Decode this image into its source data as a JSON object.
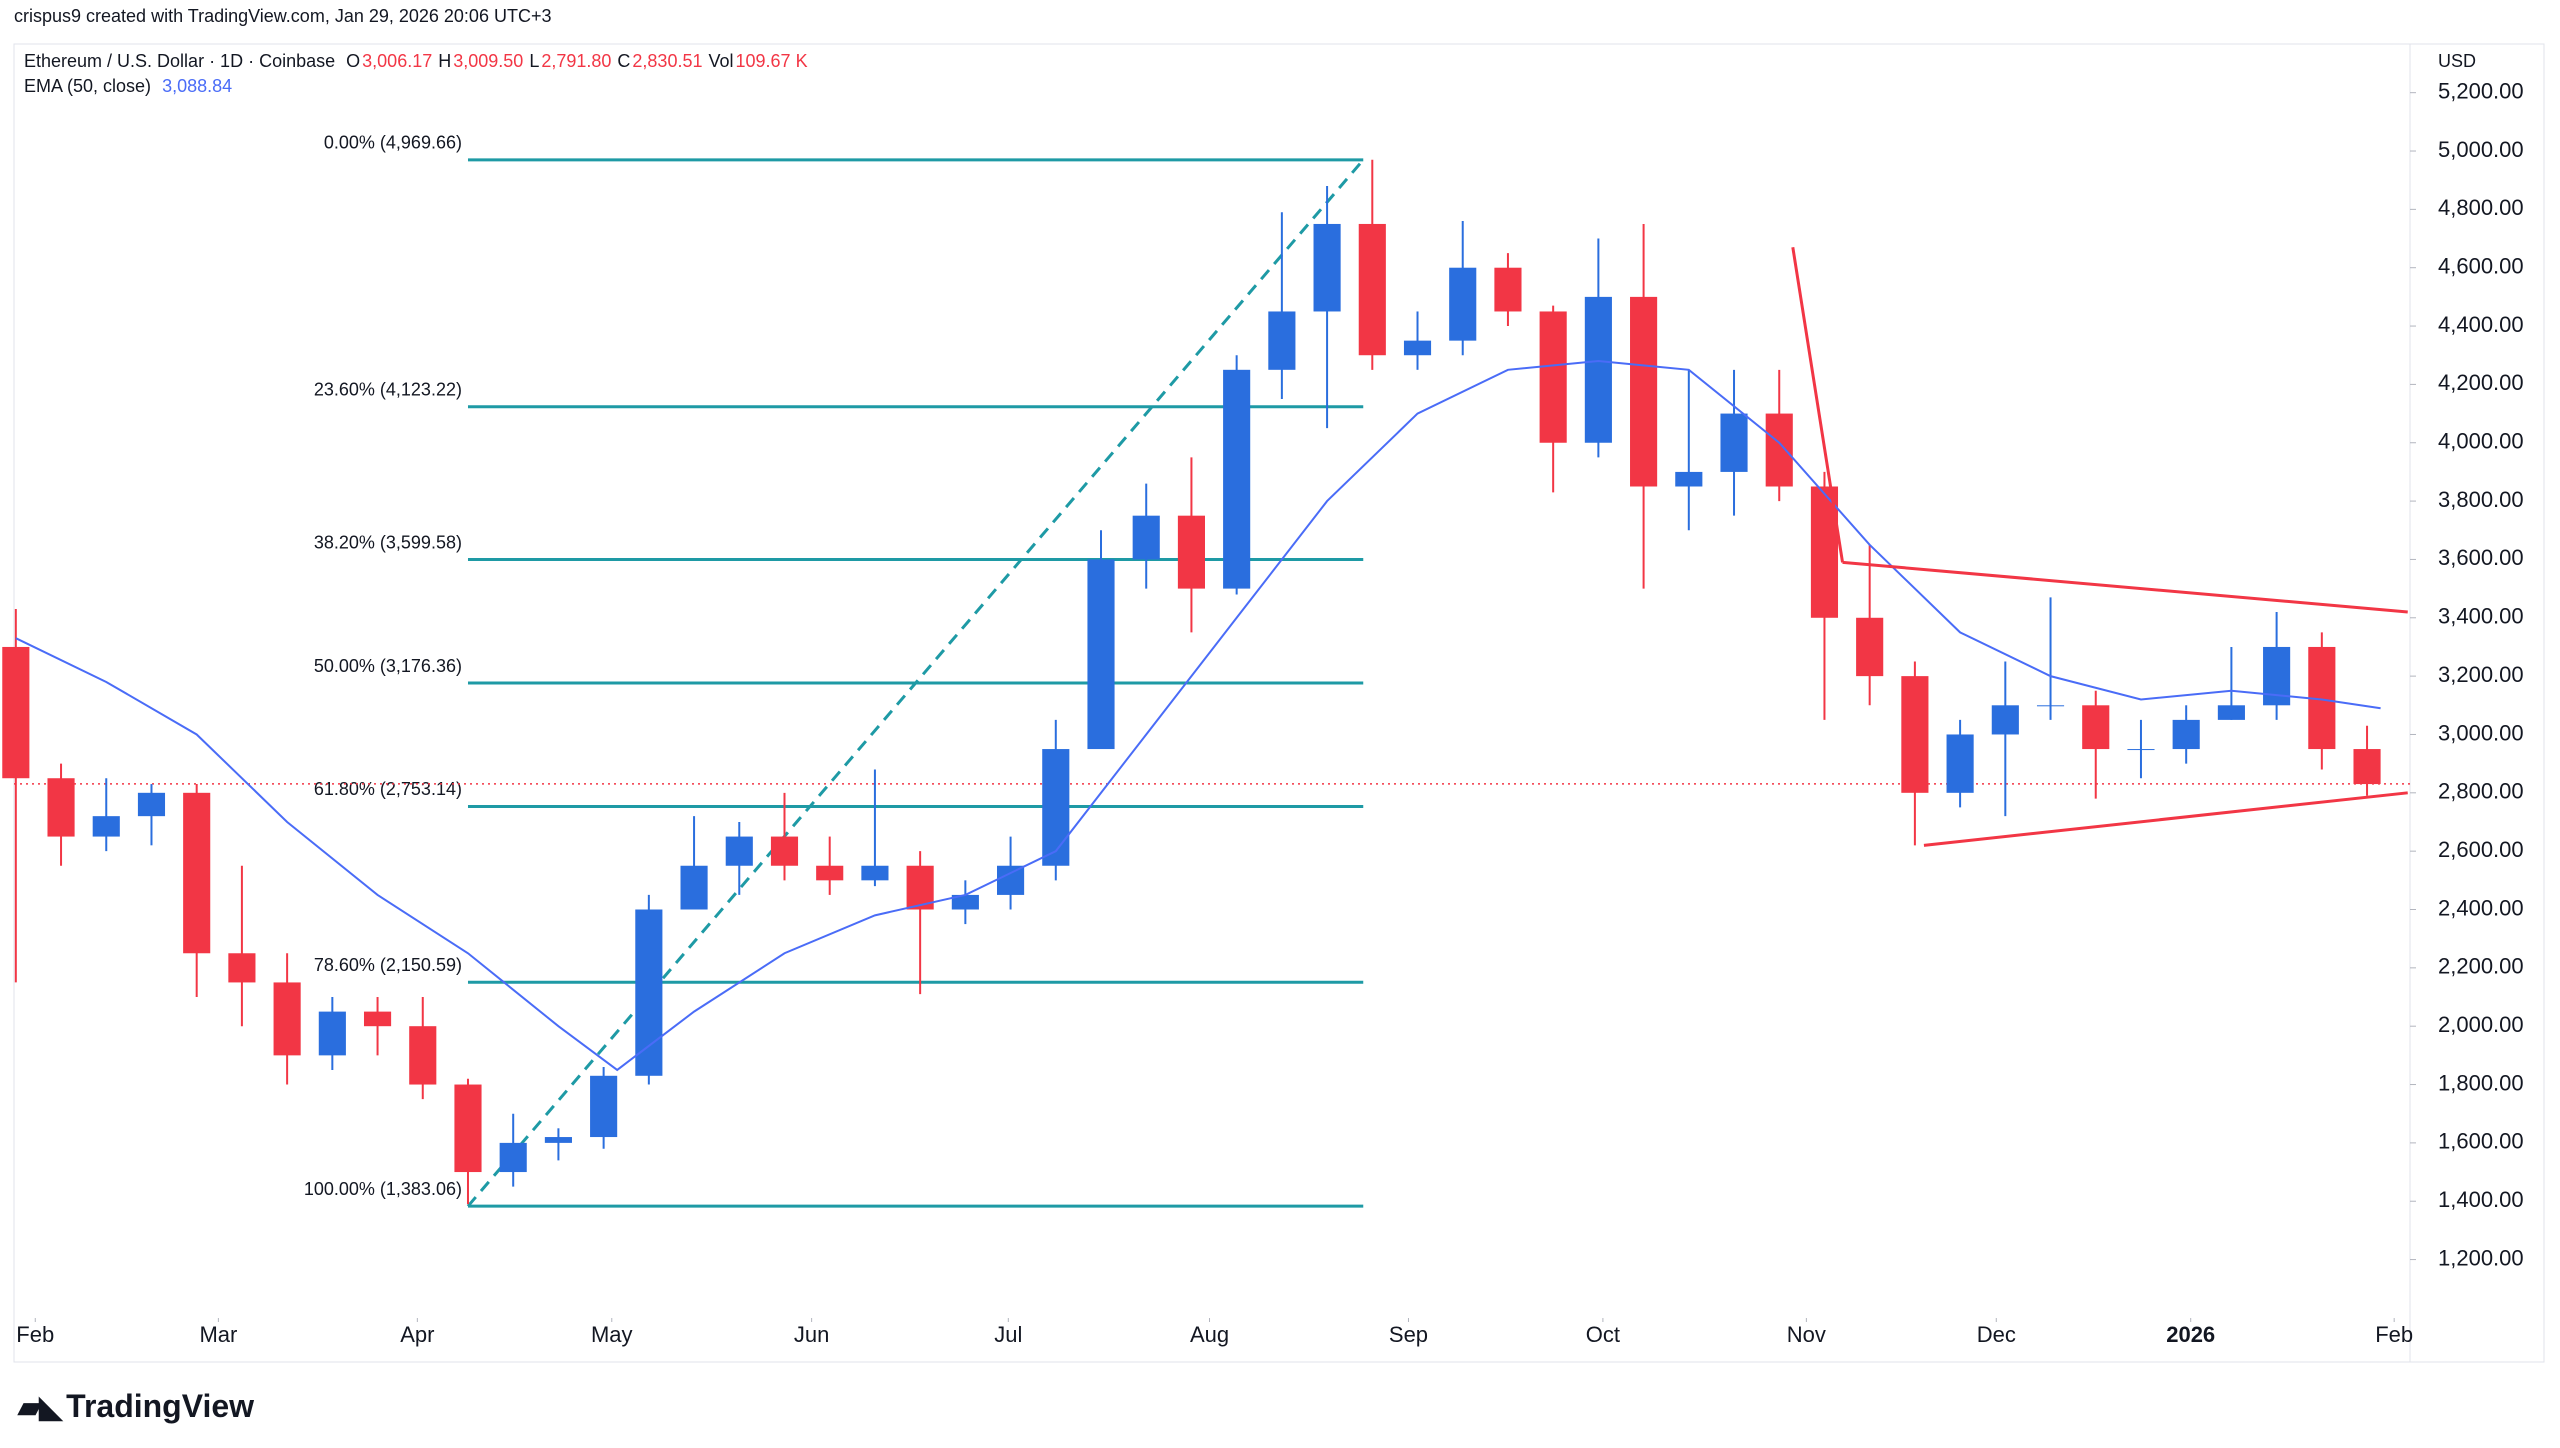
{
  "header": {
    "attribution": "crispus9 created with TradingView.com, Jan 29, 2026 20:06 UTC+3",
    "symbol": "Ethereum / U.S. Dollar · 1D · Coinbase",
    "ohlc": [
      {
        "key": "O",
        "text": "3,006.17"
      },
      {
        "key": "H",
        "text": "3,009.50"
      },
      {
        "key": "L",
        "text": "2,791.80"
      },
      {
        "key": "C",
        "text": "2,830.51"
      },
      {
        "key": "Vol",
        "text": "109.67 K"
      }
    ],
    "ema_legend": "EMA (50, close)",
    "ema_value": "3,088.84",
    "currency": "USD"
  },
  "chart_data": {
    "type": "candlestick",
    "candles": {
      "open": [
        3300,
        2850,
        2650,
        2720,
        2800,
        2250,
        2150,
        1900,
        2050,
        2000,
        1800,
        1500,
        1600,
        1620,
        1830,
        2400,
        2550,
        2650,
        2550,
        2500,
        2550,
        2400,
        2450,
        2550,
        2950,
        3600,
        3750,
        3500,
        4250,
        4450,
        4750,
        4300,
        4350,
        4600,
        4450,
        4000,
        4500,
        3850,
        3900,
        4100,
        3850,
        3400,
        3200,
        2800,
        3000,
        3100,
        3100,
        2950,
        2950,
        3050,
        3100,
        3300,
        2950
      ],
      "high": [
        3430,
        2900,
        2850,
        2830,
        2830,
        2550,
        2250,
        2100,
        2100,
        2100,
        1820,
        1700,
        1650,
        1860,
        2450,
        2720,
        2700,
        2800,
        2650,
        2880,
        2600,
        2500,
        2650,
        3050,
        3700,
        3860,
        3950,
        4300,
        4790,
        4880,
        4970,
        4450,
        4760,
        4650,
        4470,
        4700,
        4750,
        4250,
        4250,
        4250,
        3900,
        3650,
        3250,
        3050,
        3250,
        3470,
        3150,
        3050,
        3100,
        3300,
        3420,
        3350,
        3030
      ],
      "low": [
        2150,
        2550,
        2600,
        2620,
        2100,
        2000,
        1800,
        1850,
        1900,
        1750,
        1390,
        1450,
        1540,
        1580,
        1800,
        2400,
        2450,
        2500,
        2450,
        2480,
        2110,
        2350,
        2400,
        2500,
        2950,
        3500,
        3350,
        3480,
        4150,
        4050,
        4250,
        4250,
        4300,
        4400,
        3830,
        3950,
        3500,
        3700,
        3750,
        3800,
        3050,
        3100,
        2620,
        2750,
        2720,
        3050,
        2780,
        2850,
        2900,
        3050,
        3050,
        2880,
        2790
      ],
      "close": [
        2850,
        2650,
        2720,
        2800,
        2250,
        2150,
        1900,
        2050,
        2000,
        1800,
        1500,
        1600,
        1620,
        1830,
        2400,
        2550,
        2650,
        2550,
        2500,
        2550,
        2400,
        2450,
        2550,
        2950,
        3600,
        3750,
        3500,
        4250,
        4450,
        4750,
        4300,
        4350,
        4600,
        4450,
        4000,
        4500,
        3850,
        3900,
        4100,
        3850,
        3400,
        3200,
        2800,
        3000,
        3100,
        3100,
        2950,
        2950,
        3050,
        3100,
        3300,
        2950,
        2830
      ]
    },
    "up_color": "#2a6ede",
    "down_color": "#f23645",
    "ylim": [
      1010,
      5360
    ],
    "yticks": [
      {
        "value": 1200,
        "label": "1,200.00"
      },
      {
        "value": 1400,
        "label": "1,400.00"
      },
      {
        "value": 1600,
        "label": "1,600.00"
      },
      {
        "value": 1800,
        "label": "1,800.00"
      },
      {
        "value": 2000,
        "label": "2,000.00"
      },
      {
        "value": 2200,
        "label": "2,200.00"
      },
      {
        "value": 2400,
        "label": "2,400.00"
      },
      {
        "value": 2600,
        "label": "2,600.00"
      },
      {
        "value": 2800,
        "label": "2,800.00"
      },
      {
        "value": 3000,
        "label": "3,000.00"
      },
      {
        "value": 3200,
        "label": "3,200.00"
      },
      {
        "value": 3400,
        "label": "3,400.00"
      },
      {
        "value": 3600,
        "label": "3,600.00"
      },
      {
        "value": 3800,
        "label": "3,800.00"
      },
      {
        "value": 4000,
        "label": "4,000.00"
      },
      {
        "value": 4200,
        "label": "4,200.00"
      },
      {
        "value": 4400,
        "label": "4,400.00"
      },
      {
        "value": 4600,
        "label": "4,600.00"
      },
      {
        "value": 4800,
        "label": "4,800.00"
      },
      {
        "value": 5000,
        "label": "5,000.00"
      },
      {
        "value": 5200,
        "label": "5,200.00"
      }
    ],
    "xlim": [
      -0.35,
      52.95
    ],
    "xticks": [
      {
        "value": 0.43,
        "label": "Feb"
      },
      {
        "value": 4.48,
        "label": "Mar"
      },
      {
        "value": 8.88,
        "label": "Apr"
      },
      {
        "value": 13.18,
        "label": "May"
      },
      {
        "value": 17.6,
        "label": "Jun"
      },
      {
        "value": 21.95,
        "label": "Jul"
      },
      {
        "value": 26.4,
        "label": "Aug"
      },
      {
        "value": 30.8,
        "label": "Sep"
      },
      {
        "value": 35.1,
        "label": "Oct"
      },
      {
        "value": 39.6,
        "label": "Nov"
      },
      {
        "value": 43.8,
        "label": "Dec"
      },
      {
        "value": 48.1,
        "label": "2026"
      },
      {
        "value": 52.6,
        "label": "Feb"
      }
    ],
    "ema": {
      "color": "#4a6cf7",
      "x": [
        0,
        2,
        4,
        6,
        8,
        10,
        12,
        13.3,
        15,
        17,
        19,
        21,
        23,
        25,
        27,
        29,
        31,
        33,
        35,
        37,
        39,
        41,
        43,
        45,
        47,
        49,
        51,
        52.3
      ],
      "values": [
        3330,
        3180,
        3000,
        2700,
        2450,
        2250,
        2000,
        1850,
        2050,
        2250,
        2380,
        2450,
        2600,
        3000,
        3400,
        3800,
        4100,
        4250,
        4280,
        4250,
        4000,
        3650,
        3350,
        3200,
        3120,
        3150,
        3120,
        3090
      ]
    },
    "fib": {
      "color": "#1e9aa5",
      "x": [
        10,
        29.8
      ],
      "levels": [
        {
          "value": 4969.66,
          "label": "0.00% (4,969.66)"
        },
        {
          "value": 4123.22,
          "label": "23.60% (4,123.22)"
        },
        {
          "value": 3599.58,
          "label": "38.20% (3,599.58)"
        },
        {
          "value": 3176.36,
          "label": "50.00% (3,176.36)"
        },
        {
          "value": 2753.14,
          "label": "61.80% (2,753.14)"
        },
        {
          "value": 2150.59,
          "label": "78.60% (2,150.59)"
        },
        {
          "value": 1383.06,
          "label": "100.00% (1,383.06)"
        }
      ]
    },
    "trendlines": [
      {
        "color": "#f23645",
        "x": [
          39.3,
          40.4
        ],
        "y": [
          4670,
          3590
        ]
      },
      {
        "color": "#f23645",
        "x": [
          40.4,
          52.9
        ],
        "y": [
          3590,
          3420
        ]
      },
      {
        "color": "#f23645",
        "x": [
          42.2,
          52.9
        ],
        "y": [
          2620,
          2800
        ]
      }
    ],
    "last_price": 2830.51,
    "last_color": "#f23645"
  },
  "footer": {
    "logo": "TradingView"
  }
}
